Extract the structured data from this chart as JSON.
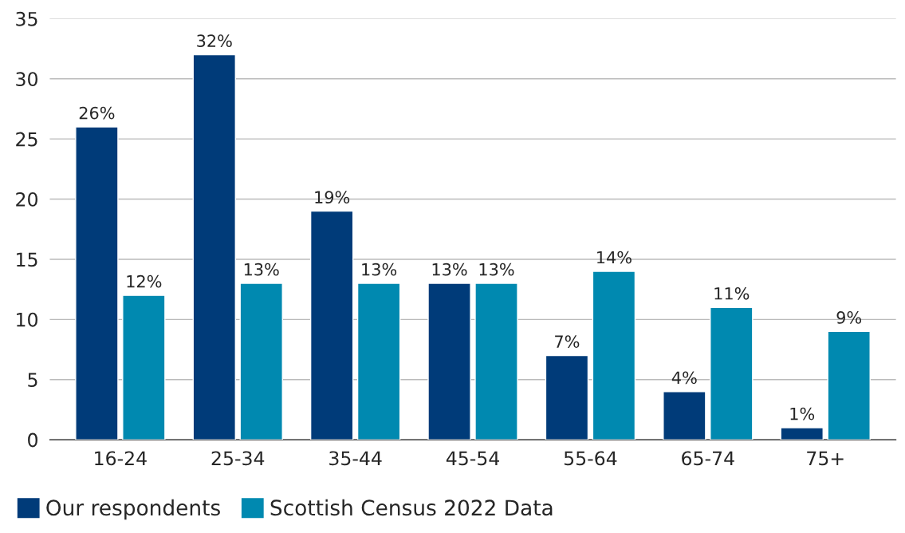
{
  "chart_data": {
    "type": "bar",
    "categories": [
      "16-24",
      "25-34",
      "35-44",
      "45-54",
      "55-64",
      "65-74",
      "75+"
    ],
    "series": [
      {
        "name": "Our respondents",
        "color": "#003b79",
        "values": [
          26,
          32,
          19,
          13,
          7,
          4,
          1
        ],
        "value_labels": [
          "26%",
          "32%",
          "19%",
          "13%",
          "7%",
          "4%",
          "1%"
        ]
      },
      {
        "name": "Scottish Census 2022 Data",
        "color": "#0089b0",
        "values": [
          12,
          13,
          13,
          13,
          14,
          11,
          9
        ],
        "value_labels": [
          "12%",
          "13%",
          "13%",
          "13%",
          "14%",
          "11%",
          "9%"
        ]
      }
    ],
    "ylim": [
      0,
      35
    ],
    "yticks": [
      0,
      5,
      10,
      15,
      20,
      25,
      30,
      35
    ],
    "grid": "y",
    "legend": "bottom"
  }
}
